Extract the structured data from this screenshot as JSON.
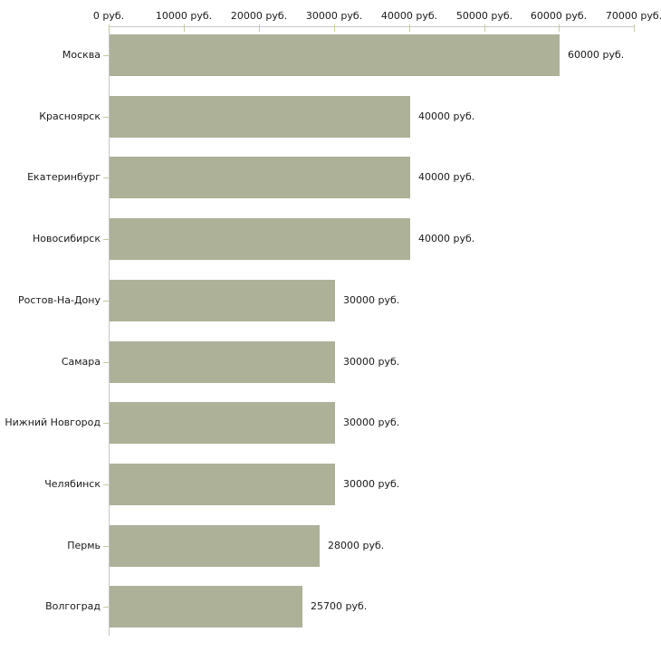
{
  "chart_data": {
    "type": "bar",
    "orientation": "horizontal",
    "title": "",
    "unit": "руб.",
    "categories": [
      "Москва",
      "Красноярск",
      "Екатеринбург",
      "Новосибирск",
      "Ростов-На-Дону",
      "Самара",
      "Нижний Новгород",
      "Челябинск",
      "Пермь",
      "Волгоград"
    ],
    "values": [
      60000,
      40000,
      40000,
      40000,
      30000,
      30000,
      30000,
      30000,
      28000,
      25700
    ],
    "value_labels": [
      "60000 руб.",
      "40000 руб.",
      "40000 руб.",
      "40000 руб.",
      "30000 руб.",
      "30000 руб.",
      "30000 руб.",
      "30000 руб.",
      "28000 руб.",
      "25700 руб."
    ],
    "x_axis": {
      "position": "top",
      "range": [
        0,
        70000
      ],
      "tick_step": 10000,
      "tick_values": [
        0,
        10000,
        20000,
        30000,
        40000,
        50000,
        60000,
        70000
      ],
      "tick_labels": [
        "0 руб.",
        "10000 руб.",
        "20000 руб.",
        "30000 руб.",
        "40000 руб.",
        "50000 руб.",
        "60000 руб.",
        "70000 руб."
      ]
    },
    "grid": false,
    "legend": false,
    "colors": {
      "bar": "#acb198",
      "axis_line": "#c6c6c6",
      "tick_mark": "#c9c99c",
      "text": "#1a1a1a",
      "background": "#ffffff"
    }
  }
}
